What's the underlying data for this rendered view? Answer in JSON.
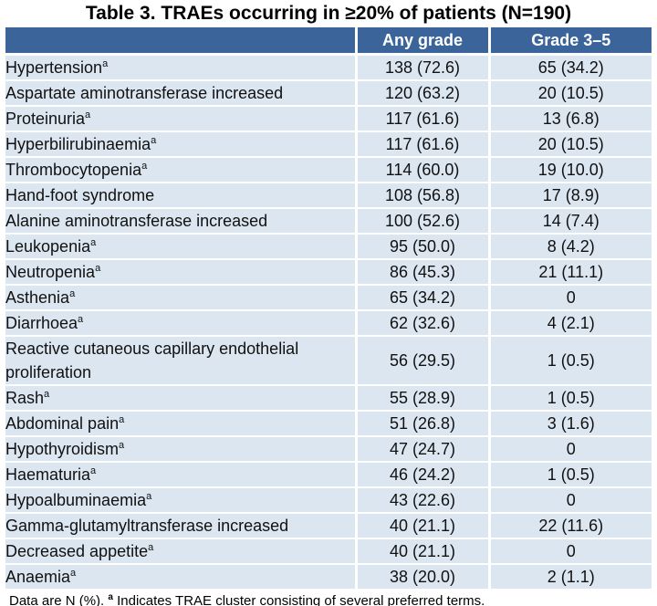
{
  "title": "Table 3. TRAEs occurring in ≥20% of patients (N=190)",
  "table": {
    "headers": [
      "",
      "Any grade",
      "Grade 3–5"
    ],
    "rows": [
      {
        "label": "Hypertension",
        "sup": "a",
        "any_grade": "138 (72.6)",
        "grade_3_5": "65 (34.2)"
      },
      {
        "label": "Aspartate aminotransferase increased",
        "sup": "",
        "any_grade": "120 (63.2)",
        "grade_3_5": "20 (10.5)"
      },
      {
        "label": "Proteinuria",
        "sup": "a",
        "any_grade": "117 (61.6)",
        "grade_3_5": "13 (6.8)"
      },
      {
        "label": "Hyperbilirubinaemia",
        "sup": "a",
        "any_grade": "117 (61.6)",
        "grade_3_5": "20 (10.5)"
      },
      {
        "label": "Thrombocytopenia",
        "sup": "a",
        "any_grade": "114 (60.0)",
        "grade_3_5": "19 (10.0)"
      },
      {
        "label": "Hand-foot syndrome",
        "sup": "",
        "any_grade": "108 (56.8)",
        "grade_3_5": "17 (8.9)"
      },
      {
        "label": "Alanine aminotransferase increased",
        "sup": "",
        "any_grade": "100 (52.6)",
        "grade_3_5": "14 (7.4)"
      },
      {
        "label": "Leukopenia",
        "sup": "a",
        "any_grade": "95 (50.0)",
        "grade_3_5": "8 (4.2)"
      },
      {
        "label": "Neutropenia",
        "sup": "a",
        "any_grade": "86 (45.3)",
        "grade_3_5": "21 (11.1)"
      },
      {
        "label": "Asthenia",
        "sup": "a",
        "any_grade": "65 (34.2)",
        "grade_3_5": "0"
      },
      {
        "label": "Diarrhoea",
        "sup": "a",
        "any_grade": "62 (32.6)",
        "grade_3_5": "4 (2.1)"
      },
      {
        "label": "Reactive cutaneous capillary endothelial proliferation",
        "sup": "",
        "any_grade": "56 (29.5)",
        "grade_3_5": "1 (0.5)"
      },
      {
        "label": "Rash",
        "sup": "a",
        "any_grade": "55 (28.9)",
        "grade_3_5": "1 (0.5)"
      },
      {
        "label": "Abdominal pain",
        "sup": "a",
        "any_grade": "51 (26.8)",
        "grade_3_5": "3 (1.6)"
      },
      {
        "label": "Hypothyroidism",
        "sup": "a",
        "any_grade": "47 (24.7)",
        "grade_3_5": "0"
      },
      {
        "label": "Haematuria",
        "sup": "a",
        "any_grade": "46 (24.2)",
        "grade_3_5": "1 (0.5)"
      },
      {
        "label": "Hypoalbuminaemia",
        "sup": "a",
        "any_grade": "43 (22.6)",
        "grade_3_5": "0"
      },
      {
        "label": "Gamma-glutamyltransferase increased",
        "sup": "",
        "any_grade": "40 (21.1)",
        "grade_3_5": "22 (11.6)"
      },
      {
        "label": "Decreased appetite",
        "sup": "a",
        "any_grade": "40 (21.1)",
        "grade_3_5": "0"
      },
      {
        "label": "Anaemia",
        "sup": "a",
        "any_grade": "38 (20.0)",
        "grade_3_5": "2 (1.1)"
      }
    ]
  },
  "footnote": {
    "prefix": "Data are N (%). ",
    "sup": "a",
    "text": " Indicates TRAE cluster consisting of several preferred terms."
  },
  "colors": {
    "header_bg": "#3A649A",
    "row_bg": "#DCE6F1",
    "separator": "#FFFFFF",
    "header_text": "#FFFFFF",
    "body_text": "#111111"
  }
}
